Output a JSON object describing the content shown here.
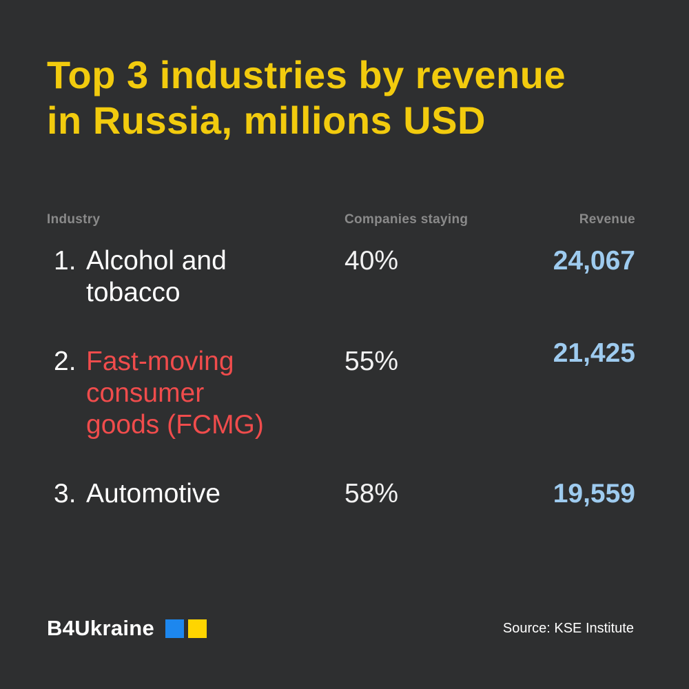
{
  "title": {
    "line1": "Top 3 industries by revenue",
    "line2": "in Russia, millions USD"
  },
  "chart_data": {
    "type": "table",
    "title": "Top 3 industries by revenue in Russia, millions USD",
    "columns": [
      "Industry",
      "Companies staying",
      "Revenue"
    ],
    "rows": [
      {
        "rank": 1,
        "industry": "Alcohol and tobacco",
        "companies_staying_pct": 40,
        "revenue_musd": 24067
      },
      {
        "rank": 2,
        "industry": "Fast-moving consumer goods (FCMG)",
        "companies_staying_pct": 55,
        "revenue_musd": 21425
      },
      {
        "rank": 3,
        "industry": "Automotive",
        "companies_staying_pct": 58,
        "revenue_musd": 19559
      }
    ],
    "source": "KSE Institute"
  },
  "table": {
    "headers": {
      "industry": "Industry",
      "companies": "Companies staying",
      "revenue": "Revenue"
    },
    "rows": [
      {
        "num": "1.",
        "industry": "Alcohol and tobacco",
        "companies": "40%",
        "revenue": "24,067",
        "highlighted": false
      },
      {
        "num": "2.",
        "industry": "Fast-moving consumer goods (FCMG)",
        "companies": "55%",
        "revenue": "21,425",
        "highlighted": true
      },
      {
        "num": "3.",
        "industry": "Automotive",
        "companies": "58%",
        "revenue": "19,559",
        "highlighted": false
      }
    ]
  },
  "footer": {
    "brand": "B4Ukraine",
    "source": "Source: KSE Institute"
  },
  "colors": {
    "bg": "#2e2f30",
    "yellow": "#f2cb0e",
    "red": "#f04c4c",
    "blue-number": "#9ecbef",
    "gray": "#8a8a8a",
    "white": "#ffffff",
    "offwhite": "#f2f2f2",
    "flag-blue": "#1d87ee",
    "flag-yellow": "#ffd500"
  }
}
